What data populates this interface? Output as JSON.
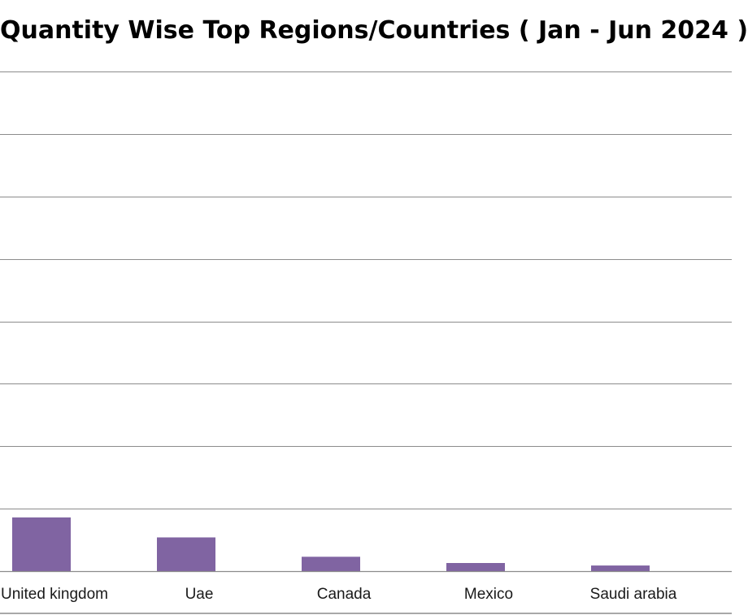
{
  "chart_data": {
    "type": "bar",
    "title": "Quantity Wise Top Regions/Countries ( Jan - Jun 2024 )",
    "categories": [
      "United kingdom",
      "Uae",
      "Canada",
      "Mexico",
      "Saudi arabia"
    ],
    "series": [
      {
        "values": [
          8.6,
          5.4,
          2.3,
          1.3,
          0.9
        ]
      }
    ],
    "ylim": [
      0,
      80
    ],
    "grid": true,
    "bar_color": "#8064a2",
    "grid_color": "#8c8c8c"
  }
}
